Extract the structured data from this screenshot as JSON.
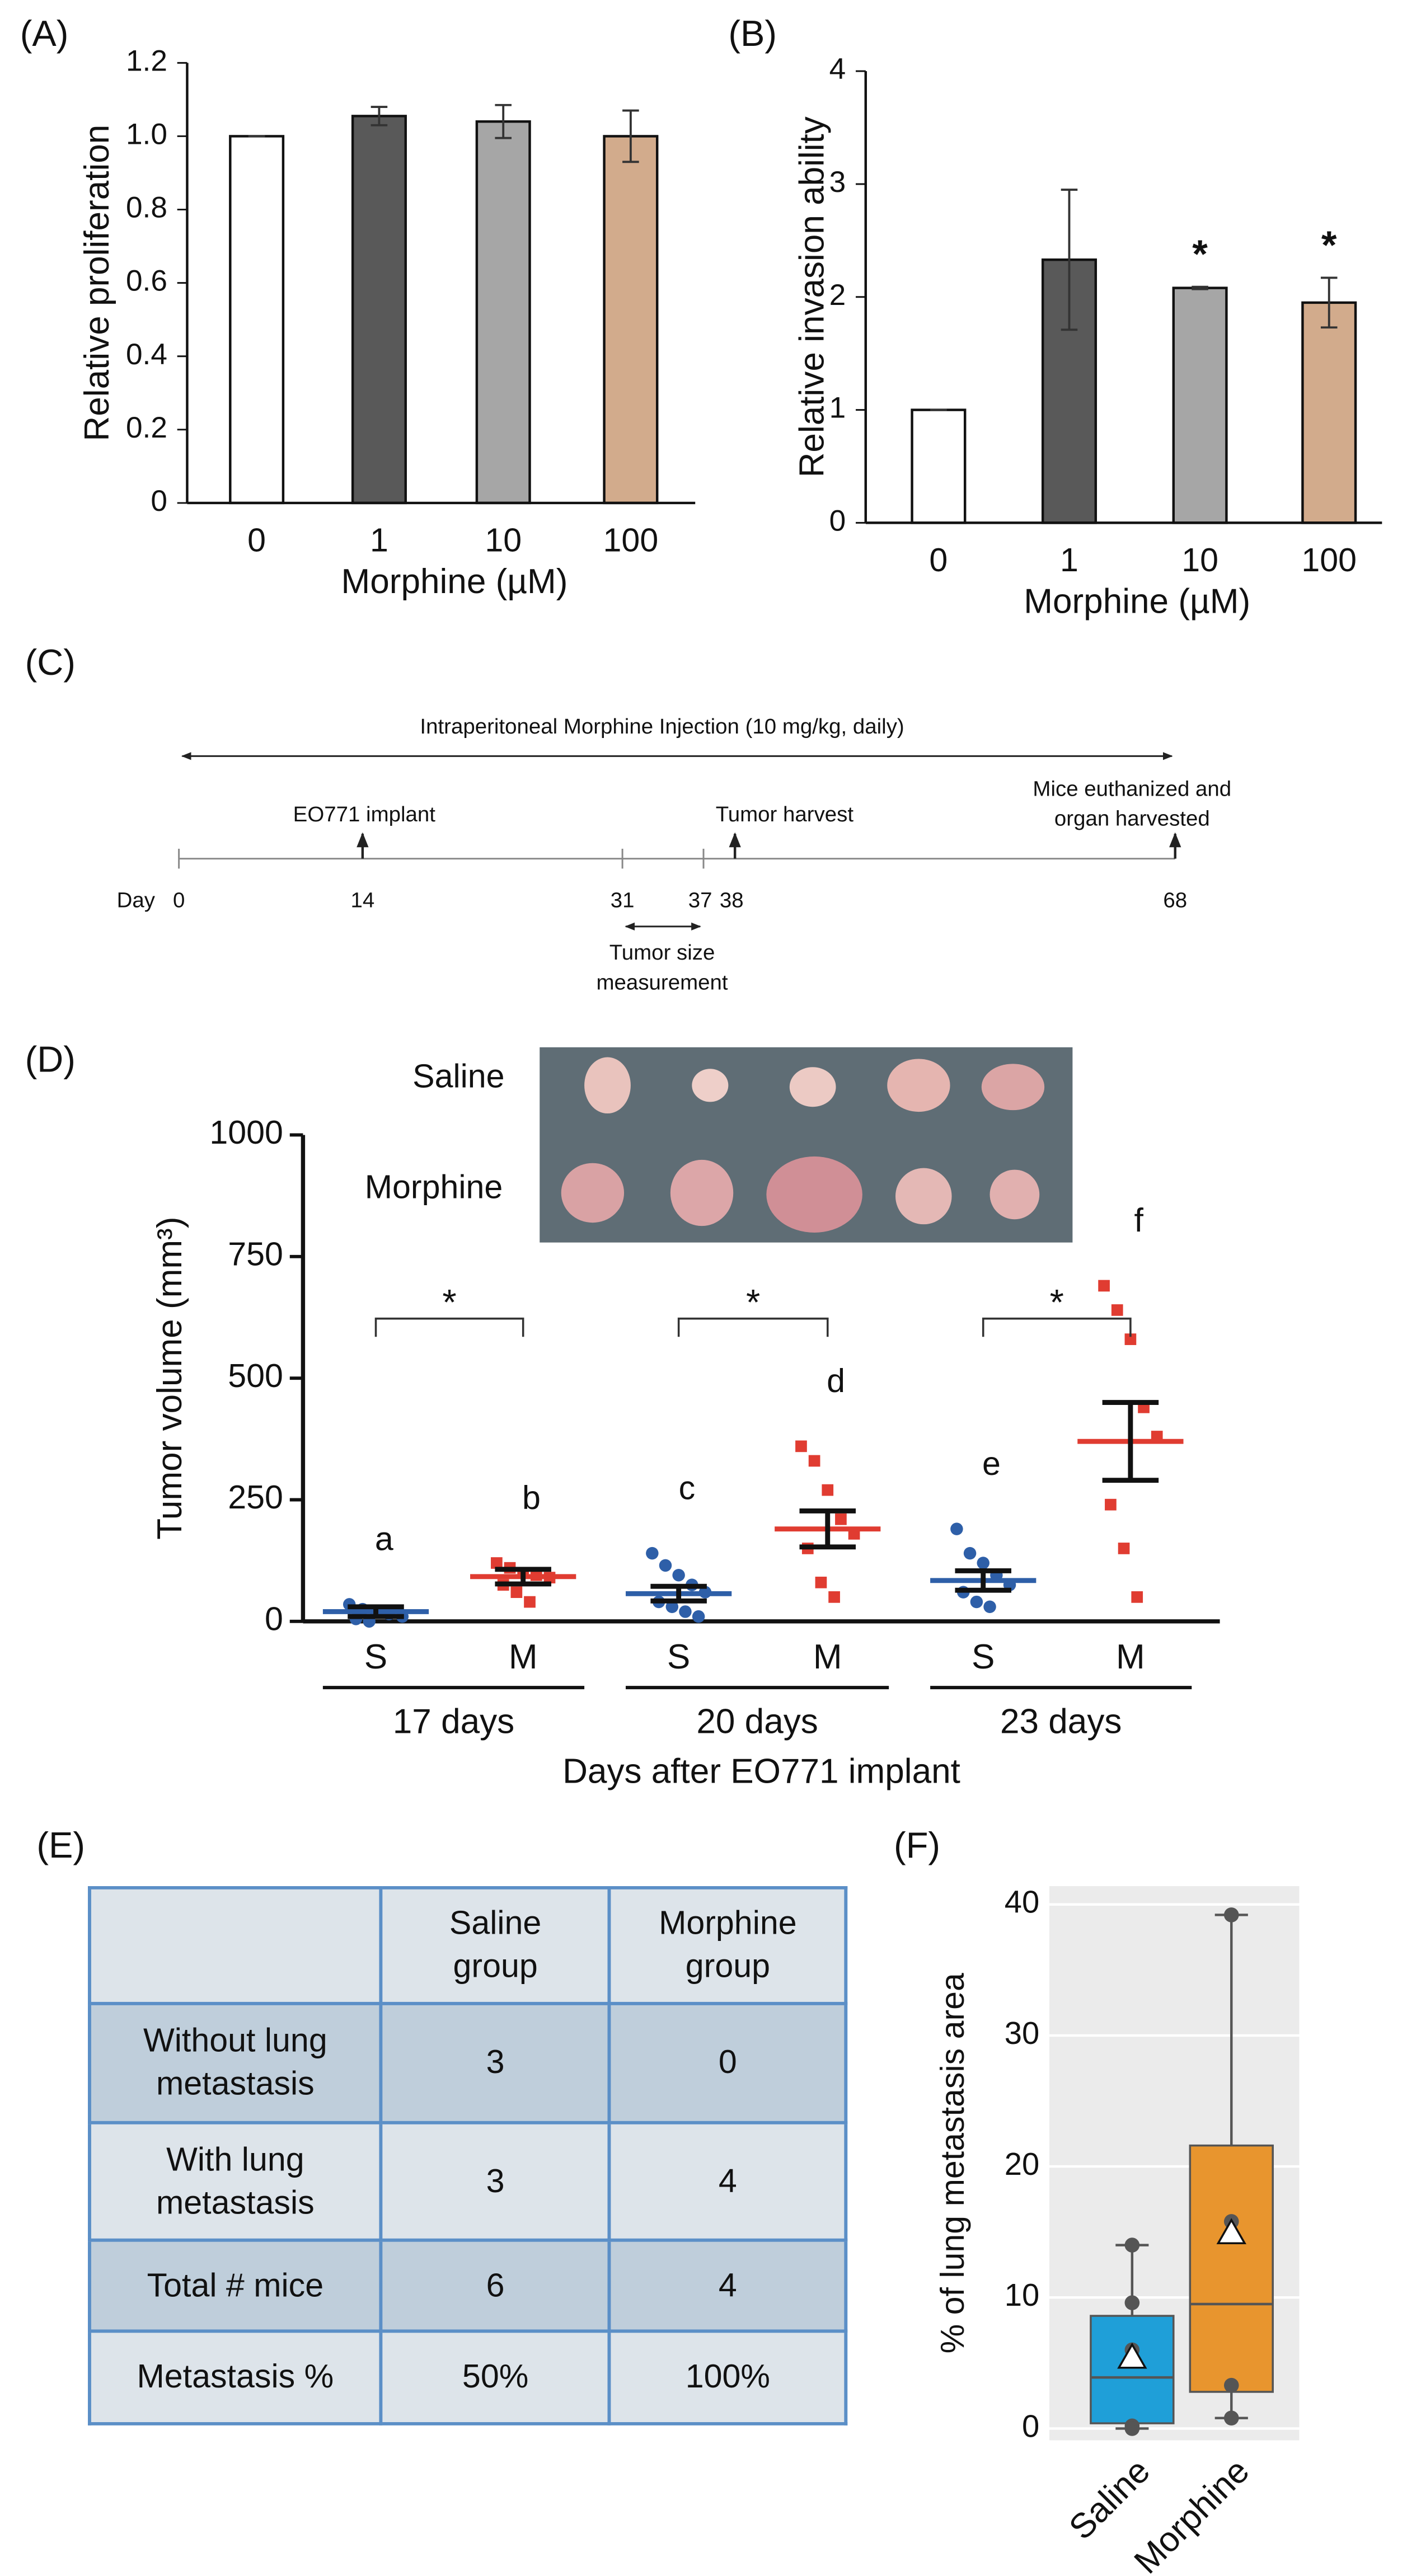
{
  "chart_data": [
    {
      "type": "bar",
      "panel": "(A)",
      "ylabel": "Relative proliferation",
      "xlabel": "Morphine (µM)",
      "categories": [
        "0",
        "1",
        "10",
        "100"
      ],
      "values": [
        1.0,
        1.055,
        1.04,
        1.0
      ],
      "errors": [
        0,
        0.025,
        0.045,
        0.07
      ],
      "colors": [
        "#ffffff",
        "#595959",
        "#a6a6a6",
        "#d2ab8c"
      ],
      "ylim": [
        0,
        1.2
      ],
      "yticks": [
        0,
        0.2,
        0.4,
        0.6,
        0.8,
        {
          "value": 1,
          "label": "1.0"
        },
        1.2
      ]
    },
    {
      "type": "bar",
      "panel": "(B)",
      "ylabel": "Relative invasion ability",
      "xlabel": "Morphine (µM)",
      "categories": [
        "0",
        "1",
        "10",
        "100"
      ],
      "values": [
        1.0,
        2.33,
        2.08,
        1.95
      ],
      "errors": [
        0,
        0.62,
        0.01,
        0.22
      ],
      "colors": [
        "#ffffff",
        "#595959",
        "#a6a6a6",
        "#d2ab8c"
      ],
      "ylim": [
        0,
        4
      ],
      "yticks": [
        0,
        1,
        2,
        3,
        4
      ],
      "annotations": [
        {
          "text": "*",
          "x": "10"
        },
        {
          "text": "*",
          "x": "100"
        }
      ]
    },
    {
      "type": "dotplot",
      "panel": "(D)",
      "ylabel": "Tumor volume (mm³)",
      "xlabel": "Days after EO771 implant",
      "categories": [
        "S",
        "M",
        "S",
        "M",
        "S",
        "M"
      ],
      "groups": [
        "17 days",
        "20 days",
        "23 days"
      ],
      "inset_labels": [
        "Saline",
        "Morphine"
      ],
      "points": [
        [
          35,
          25,
          20,
          15,
          10,
          5,
          0,
          20
        ],
        [
          120,
          110,
          100,
          95,
          90,
          75,
          60,
          40
        ],
        [
          140,
          115,
          95,
          75,
          60,
          40,
          30,
          20,
          10
        ],
        [
          360,
          330,
          270,
          210,
          180,
          150,
          80,
          50
        ],
        [
          190,
          140,
          120,
          95,
          75,
          60,
          40,
          30
        ],
        [
          690,
          640,
          580,
          440,
          380,
          240,
          150,
          50
        ]
      ],
      "means": [
        20,
        92,
        57,
        190,
        84,
        370
      ],
      "sems": [
        10,
        15,
        15,
        37,
        20,
        80
      ],
      "colors": [
        "#2e5fa8",
        "#e03c31",
        "#2e5fa8",
        "#e03c31",
        "#2e5fa8",
        "#e03c31"
      ],
      "letters": [
        "a",
        "b",
        "c",
        "d",
        "e",
        "f"
      ],
      "significance": [
        "*",
        "*",
        "*"
      ],
      "ylim": [
        0,
        1000
      ],
      "yticks": [
        0,
        250,
        500,
        750,
        1000
      ]
    },
    {
      "type": "box",
      "panel": "(F)",
      "ylabel": "% of lung metastasis area",
      "categories": [
        "Saline",
        "Morphine"
      ],
      "colors": [
        "#1f9fd8",
        "#e8952e"
      ],
      "min": [
        0,
        0.8
      ],
      "q1": [
        0.4,
        2.8
      ],
      "median": [
        3.9,
        9.5
      ],
      "q3": [
        8.6,
        21.6
      ],
      "max": [
        14,
        39.2
      ],
      "mean": [
        5.4,
        14.9
      ],
      "points": [
        [
          14,
          9.6,
          6,
          0.2,
          0
        ],
        [
          39.2,
          15.8,
          3.3,
          0.8
        ]
      ],
      "ylim": [
        -0.9,
        41.4
      ],
      "yticks": [
        0,
        10,
        20,
        30,
        40
      ],
      "grid": true
    }
  ],
  "timeline": {
    "panel": "(C)",
    "injection": "Intraperitoneal Morphine Injection (10 mg/kg, daily)",
    "day_label": "Day",
    "days": [
      0,
      14,
      31,
      37,
      38,
      68
    ],
    "events": [
      "EO771 implant",
      "Tumor harvest",
      "Mice euthanized and organ harvested"
    ],
    "measurement": "Tumor size measurement"
  },
  "table": {
    "panel": "(E)",
    "header": [
      "Saline group",
      "Morphine group"
    ],
    "rows": [
      [
        "Without lung metastasis",
        "3",
        "0"
      ],
      [
        "With lung metastasis",
        "3",
        "4"
      ],
      [
        "Total # mice",
        "6",
        "4"
      ],
      [
        "Metastasis %",
        "50%",
        "100%"
      ]
    ]
  }
}
